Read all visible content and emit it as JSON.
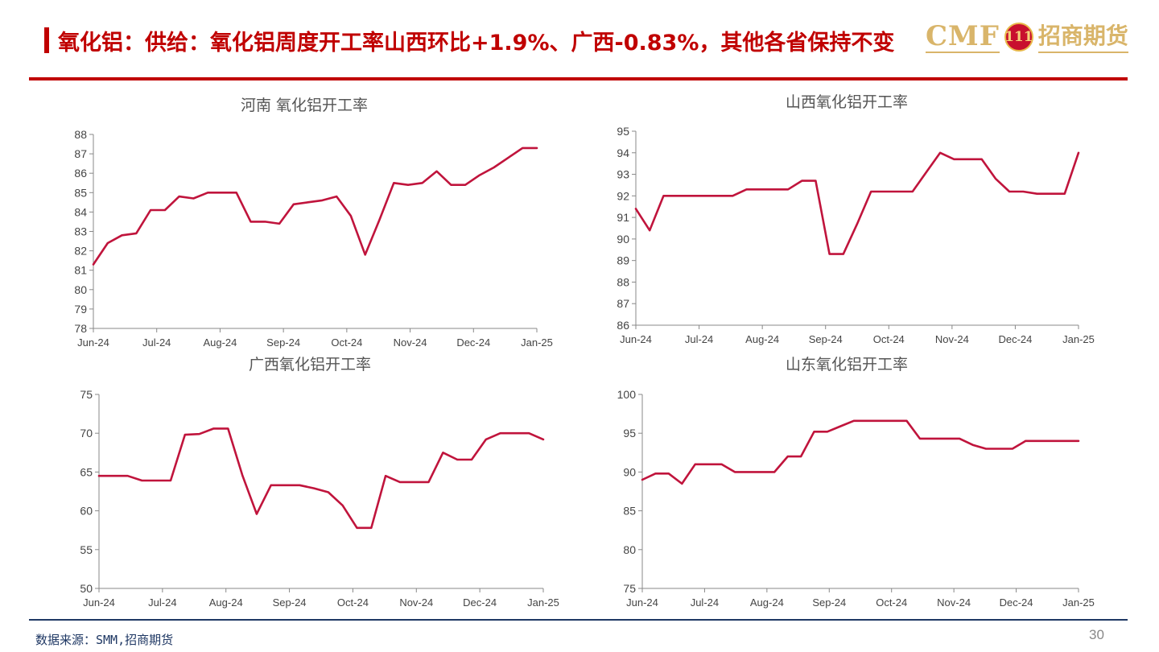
{
  "header": {
    "title": "氧化铝：供给：氧化铝周度开工率山西环比+1.9%、广西-0.83%，其他各省保持不变",
    "logo_text": "CMF",
    "logo_emblem": "111",
    "logo_cn": "招商期货"
  },
  "footer": {
    "source": "数据来源：SMM,招商期货",
    "page_number": "30"
  },
  "colors": {
    "accent": "#c00000",
    "series": "#c0143c",
    "rule_bottom": "#1f3864"
  },
  "chart_data": [
    {
      "type": "line",
      "title": "河南 氧化铝开工率",
      "xlabel": "",
      "ylabel": "",
      "x_ticks": [
        "Jun-24",
        "Jul-24",
        "Aug-24",
        "Sep-24",
        "Oct-24",
        "Nov-24",
        "Dec-24",
        "Jan-25"
      ],
      "ylim": [
        78,
        88
      ],
      "y_ticks": [
        78,
        79,
        80,
        81,
        82,
        83,
        84,
        85,
        86,
        87,
        88
      ],
      "series": [
        {
          "values": [
            81.3,
            82.4,
            82.8,
            82.9,
            84.1,
            84.1,
            84.8,
            84.7,
            85.0,
            85.0,
            85.0,
            83.5,
            83.5,
            83.4,
            84.4,
            84.5,
            84.6,
            84.8,
            83.8,
            81.8,
            83.6,
            85.5,
            85.4,
            85.5,
            86.1,
            85.4,
            85.4,
            85.9,
            86.3,
            86.8,
            87.3,
            87.3
          ]
        }
      ]
    },
    {
      "type": "line",
      "title": "山西氧化铝开工率",
      "xlabel": "",
      "ylabel": "",
      "x_ticks": [
        "Jun-24",
        "Jul-24",
        "Aug-24",
        "Sep-24",
        "Oct-24",
        "Nov-24",
        "Dec-24",
        "Jan-25"
      ],
      "ylim": [
        86,
        95
      ],
      "y_ticks": [
        86,
        87,
        88,
        89,
        90,
        91,
        92,
        93,
        94,
        95
      ],
      "series": [
        {
          "values": [
            91.4,
            90.4,
            92.0,
            92.0,
            92.0,
            92.0,
            92.0,
            92.0,
            92.3,
            92.3,
            92.3,
            92.3,
            92.7,
            92.7,
            89.3,
            89.3,
            90.7,
            92.2,
            92.2,
            92.2,
            92.2,
            93.1,
            94.0,
            93.7,
            93.7,
            93.7,
            92.8,
            92.2,
            92.2,
            92.1,
            92.1,
            92.1,
            94.0
          ]
        }
      ]
    },
    {
      "type": "line",
      "title": "广西氧化铝开工率",
      "xlabel": "",
      "ylabel": "",
      "x_ticks": [
        "Jun-24",
        "Jul-24",
        "Aug-24",
        "Sep-24",
        "Oct-24",
        "Nov-24",
        "Dec-24",
        "Jan-25"
      ],
      "ylim": [
        50,
        75
      ],
      "y_ticks": [
        50,
        55,
        60,
        65,
        70,
        75
      ],
      "series": [
        {
          "values": [
            64.5,
            64.5,
            64.5,
            63.9,
            63.9,
            63.9,
            69.8,
            69.9,
            70.6,
            70.6,
            64.6,
            59.6,
            63.3,
            63.3,
            63.3,
            62.9,
            62.4,
            60.7,
            57.8,
            57.8,
            64.5,
            63.7,
            63.7,
            63.7,
            67.5,
            66.6,
            66.6,
            69.2,
            70.0,
            70.0,
            70.0,
            69.2
          ]
        }
      ]
    },
    {
      "type": "line",
      "title": "山东氧化铝开工率",
      "xlabel": "",
      "ylabel": "",
      "x_ticks": [
        "Jun-24",
        "Jul-24",
        "Aug-24",
        "Sep-24",
        "Oct-24",
        "Nov-24",
        "Dec-24",
        "Jan-25"
      ],
      "ylim": [
        75,
        100
      ],
      "y_ticks": [
        75,
        80,
        85,
        90,
        95,
        100
      ],
      "series": [
        {
          "values": [
            89.0,
            89.8,
            89.8,
            88.5,
            91.0,
            91.0,
            91.0,
            90.0,
            90.0,
            90.0,
            90.0,
            92.0,
            92.0,
            95.2,
            95.2,
            95.9,
            96.6,
            96.6,
            96.6,
            96.6,
            96.6,
            94.3,
            94.3,
            94.3,
            94.3,
            93.5,
            93.0,
            93.0,
            93.0,
            94.0,
            94.0,
            94.0,
            94.0,
            94.0
          ]
        }
      ]
    }
  ]
}
